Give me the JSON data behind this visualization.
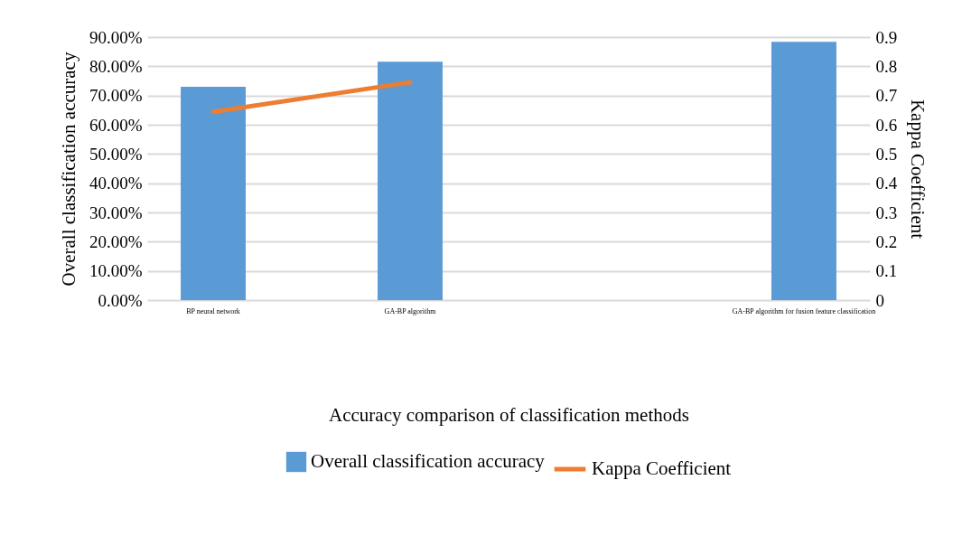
{
  "chart_data": {
    "type": "bar",
    "xlabel": "Accuracy comparison of classification methods",
    "ylabel": "Overall classification accuracy",
    "y2label": "Kappa Coefficient",
    "categories": [
      "BP neural network",
      "GA-BP algorithm",
      null,
      "GA-BP algorithm for fusion feature classification"
    ],
    "series": [
      {
        "name": "Overall classification accuracy",
        "color": "#5b9bd5",
        "values": [
          73.0,
          81.6,
          null,
          88.4
        ]
      },
      {
        "name": "Kappa Coefficient",
        "type": "line",
        "axis": "y2",
        "color": "#ed7d31",
        "values": [
          0.644,
          0.745,
          null,
          null
        ]
      }
    ],
    "ylim": [
      0,
      90
    ],
    "yticks": [
      {
        "value": 0,
        "label": "0.00%"
      },
      {
        "value": 10,
        "label": "10.00%"
      },
      {
        "value": 20,
        "label": "20.00%"
      },
      {
        "value": 30,
        "label": "30.00%"
      },
      {
        "value": 40,
        "label": "40.00%"
      },
      {
        "value": 50,
        "label": "50.00%"
      },
      {
        "value": 60,
        "label": "60.00%"
      },
      {
        "value": 70,
        "label": "70.00%"
      },
      {
        "value": 80,
        "label": "80.00%"
      },
      {
        "value": 90,
        "label": "90.00%"
      }
    ],
    "y2lim": [
      0,
      0.9
    ],
    "y2ticks": [
      0,
      0.1,
      0.2,
      0.3,
      0.4,
      0.5,
      0.6,
      0.7,
      0.8,
      0.9
    ],
    "grid": "y",
    "legend": "bottom",
    "marker": "none",
    "line_style": "solid"
  }
}
